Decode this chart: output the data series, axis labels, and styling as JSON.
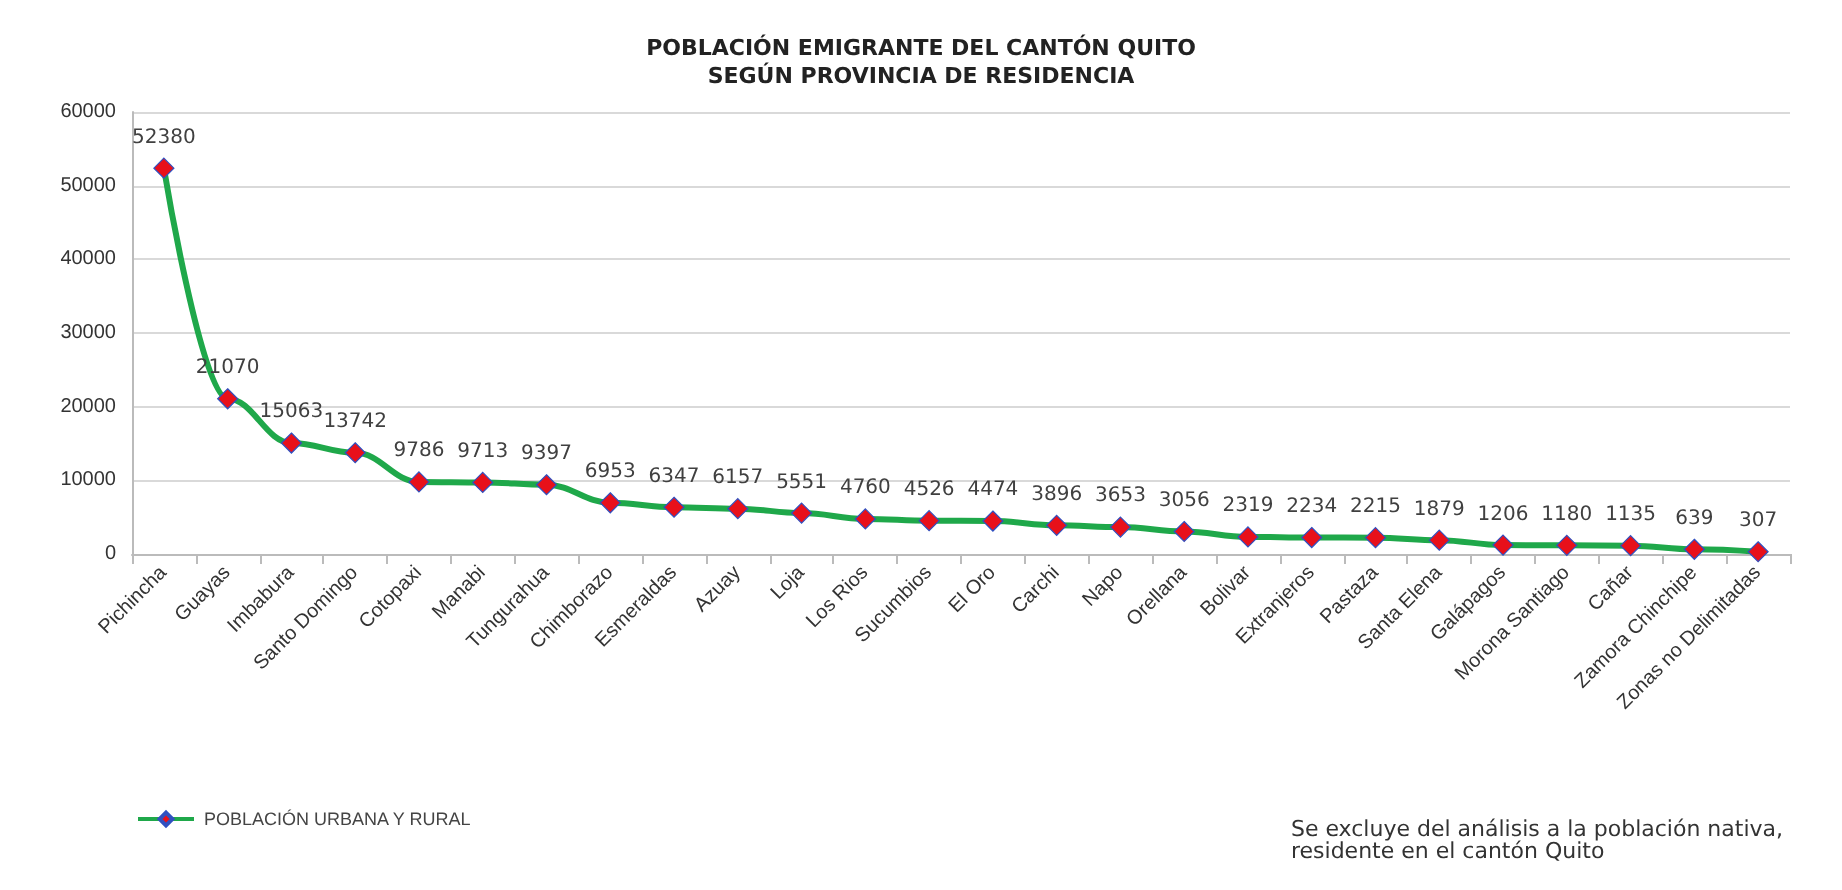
{
  "chart_data": {
    "type": "line",
    "title": "POBLACIÓN EMIGRANTE DEL CANTÓN QUITO\nSEGÚN PROVINCIA DE RESIDENCIA",
    "categories": [
      "Pichincha",
      "Guayas",
      "Imbabura",
      "Santo Domingo",
      "Cotopaxi",
      "Manabi",
      "Tungurahua",
      "Chimborazo",
      "Esmeraldas",
      "Azuay",
      "Loja",
      "Los Rios",
      "Sucumbios",
      "El Oro",
      "Carchi",
      "Napo",
      "Orellana",
      "Bolivar",
      "Extranjeros",
      "Pastaza",
      "Santa Elena",
      "Galápagos",
      "Morona Santiago",
      "Cañar",
      "Zamora Chinchipe",
      "Zonas no Delimitadas"
    ],
    "series": [
      {
        "name": "POBLACIÓN URBANA Y RURAL",
        "color": "#1fa84a",
        "values": [
          52380,
          21070,
          15063,
          13742,
          9786,
          9713,
          9397,
          6953,
          6347,
          6157,
          5551,
          4760,
          4526,
          4474,
          3896,
          3653,
          3056,
          2319,
          2234,
          2215,
          1879,
          1206,
          1180,
          1135,
          639,
          307
        ]
      }
    ],
    "ylim": [
      0,
      60000
    ],
    "yticks": [
      0,
      10000,
      20000,
      30000,
      40000,
      50000,
      60000
    ],
    "grid": "y",
    "legend": "bottom left",
    "marker": "diamond",
    "line_style": "solid",
    "data_labels": true,
    "annotations": [
      "Se excluye del análisis a la población nativa, residente en el cantón Quito"
    ]
  }
}
